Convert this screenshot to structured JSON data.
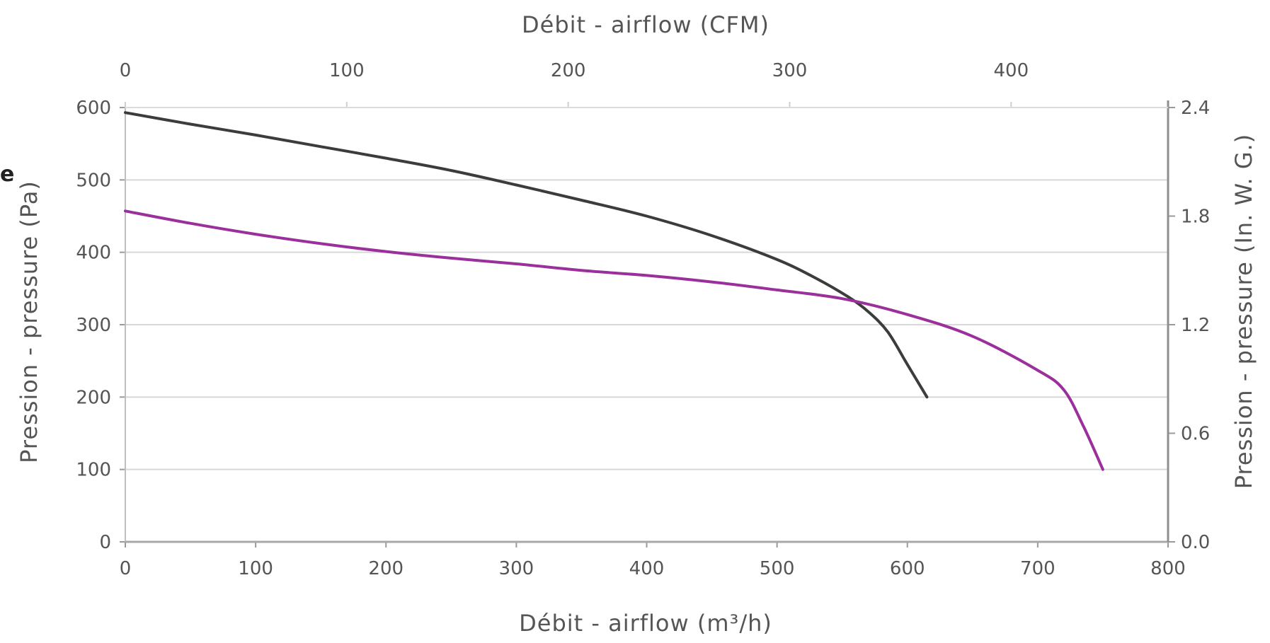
{
  "chart_data": {
    "type": "line",
    "corner_mark": "e",
    "top_xlabel": "Débit - airflow (CFM)",
    "xlabel": "Débit - airflow (m³/h)",
    "ylabel": "Pression - pressure (Pa)",
    "ylabel_right": "Pression - pressure (In. W. G.)",
    "xlim": [
      0,
      800
    ],
    "ylim": [
      0,
      600
    ],
    "x_ticks": [
      "0",
      "100",
      "200",
      "300",
      "400",
      "500",
      "600",
      "700",
      "800"
    ],
    "y_ticks": [
      "0",
      "100",
      "200",
      "300",
      "400",
      "500",
      "600"
    ],
    "top_x_ticks": [
      "0",
      "100",
      "200",
      "300",
      "400"
    ],
    "top_x_tick_values_cfm": [
      0,
      100,
      200,
      300,
      400
    ],
    "right_y_ticks": [
      "0.0",
      "0.6",
      "1.2",
      "1.8",
      "2.4"
    ],
    "grid": "horizontal",
    "legend": "none",
    "series": [
      {
        "color": "#3c3c3c",
        "x": [
          0,
          50,
          100,
          150,
          200,
          250,
          300,
          350,
          400,
          450,
          500,
          530,
          555,
          570,
          585,
          600,
          615
        ],
        "y": [
          593,
          577,
          562,
          546,
          530,
          513,
          493,
          472,
          450,
          423,
          390,
          364,
          338,
          318,
          290,
          245,
          200
        ]
      },
      {
        "color": "#9b2f9b",
        "x": [
          0,
          50,
          100,
          150,
          200,
          250,
          300,
          350,
          400,
          450,
          500,
          550,
          600,
          650,
          700,
          720,
          735,
          750
        ],
        "y": [
          457,
          440,
          425,
          412,
          401,
          392,
          384,
          375,
          368,
          359,
          348,
          336,
          314,
          284,
          237,
          210,
          160,
          100
        ]
      }
    ]
  }
}
